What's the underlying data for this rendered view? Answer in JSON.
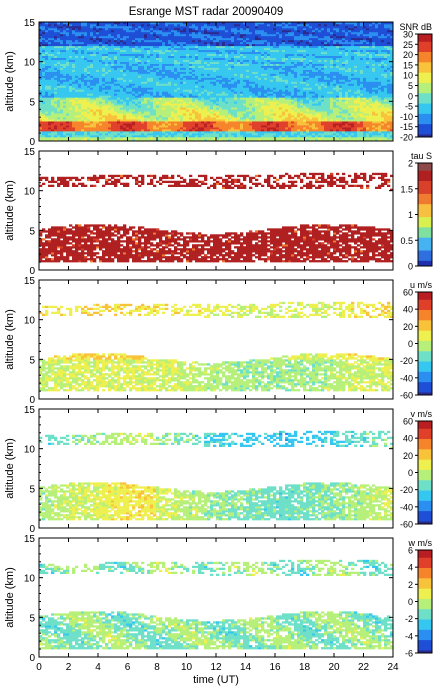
{
  "title": "Esrange MST radar 20090409",
  "chart_data": [
    {
      "type": "heatmap",
      "ylabel": "altitude (km)",
      "ylim": [
        0,
        15
      ],
      "xlim": [
        0,
        24
      ],
      "yticks": [
        "0",
        "5",
        "10",
        "15"
      ],
      "colorbar_title": "SNR dB",
      "colorbar_range": [
        -20,
        30
      ],
      "colorbar_ticks": [
        "30",
        "25",
        "20",
        "15",
        "10",
        "5",
        "0",
        "-5",
        "-10",
        "-15",
        "-20"
      ],
      "field": "snr"
    },
    {
      "type": "heatmap",
      "ylabel": "altitude (km)",
      "ylim": [
        0,
        15
      ],
      "xlim": [
        0,
        24
      ],
      "yticks": [
        "0",
        "5",
        "10",
        "15"
      ],
      "colorbar_title": "tau S",
      "colorbar_range": [
        0,
        2
      ],
      "colorbar_ticks": [
        "2",
        "1.5",
        "1",
        "0.5",
        "0"
      ],
      "field": "tau"
    },
    {
      "type": "heatmap",
      "ylabel": "altitude (km)",
      "ylim": [
        0,
        15
      ],
      "xlim": [
        0,
        24
      ],
      "yticks": [
        "0",
        "5",
        "10",
        "15"
      ],
      "colorbar_title": "u m/s",
      "colorbar_range": [
        -60,
        60
      ],
      "colorbar_ticks": [
        "60",
        "40",
        "20",
        "0",
        "-20",
        "-40",
        "-60"
      ],
      "field": "u"
    },
    {
      "type": "heatmap",
      "ylabel": "altitude (km)",
      "ylim": [
        0,
        15
      ],
      "xlim": [
        0,
        24
      ],
      "yticks": [
        "0",
        "5",
        "10",
        "15"
      ],
      "colorbar_title": "v m/s",
      "colorbar_range": [
        -60,
        60
      ],
      "colorbar_ticks": [
        "60",
        "40",
        "20",
        "0",
        "-20",
        "-40",
        "-60"
      ],
      "field": "v"
    },
    {
      "type": "heatmap",
      "ylabel": "altitude (km)",
      "ylim": [
        0,
        15
      ],
      "xlim": [
        0,
        24
      ],
      "yticks": [
        "0",
        "5",
        "10",
        "15"
      ],
      "xticks": [
        "0",
        "2",
        "4",
        "6",
        "8",
        "10",
        "12",
        "14",
        "16",
        "18",
        "20",
        "22",
        "24"
      ],
      "xlabel": "time (UT)",
      "colorbar_title": "w m/s",
      "colorbar_range": [
        -6,
        6
      ],
      "colorbar_ticks": [
        "6",
        "4",
        "2",
        "0",
        "-2",
        "-4",
        "-6"
      ],
      "field": "w"
    }
  ],
  "colormap": [
    "#2b2b8f",
    "#1f4fd6",
    "#2a8ff0",
    "#36c7f0",
    "#6fe0c8",
    "#b6f07a",
    "#eef050",
    "#f8c23a",
    "#f5842a",
    "#e0402a",
    "#b81e22"
  ],
  "tau_colormap": [
    "#1f2fb0",
    "#2f6fe0",
    "#46b2f0",
    "#7fe0a0",
    "#d8f050",
    "#f8c040",
    "#f07a30",
    "#d8402a",
    "#b02020",
    "#8e4a4a"
  ]
}
